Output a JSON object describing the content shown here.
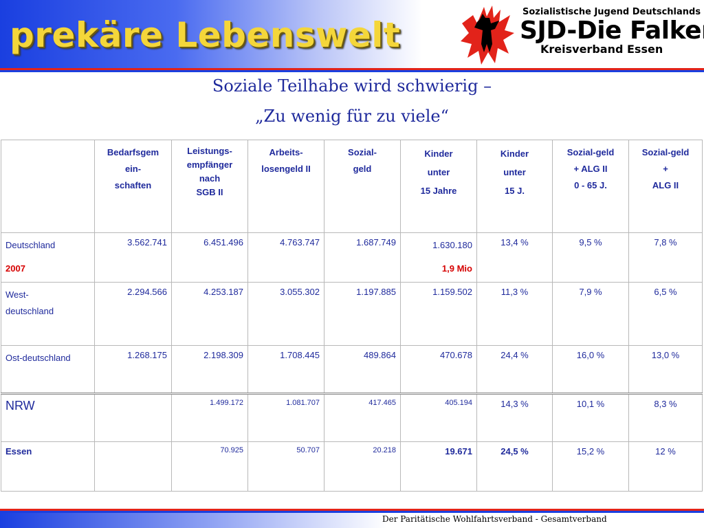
{
  "header": {
    "title": "prekäre Lebenswelt",
    "org_line1": "Sozialistische Jugend Deutschlands",
    "org_line2": "SJD-Die Falken",
    "org_line3": "Kreisverband Essen"
  },
  "slide": {
    "title_line1": "Soziale Teilhabe wird schwierig –",
    "title_line2": "„Zu wenig für zu viele“"
  },
  "table": {
    "headers": [
      "",
      "Bedarfsgem ein-schaften",
      "Leistungs-empfänger nach SGB II",
      "Arbeits-losengeld II",
      "Sozial-geld",
      "Kinder unter 15 Jahre",
      "Kinder unter 15 J.",
      "Sozial-geld + ALG II 0 - 65 J.",
      "Sozial-geld + ALG II"
    ],
    "header_lines": {
      "bedarf": [
        "Bedarfsgem",
        "ein-",
        "schaften"
      ],
      "leist": [
        "Leistungs-",
        "empfänger",
        "nach",
        "SGB II"
      ],
      "alg": [
        "Arbeits-",
        "losengeld II"
      ],
      "sozial": [
        "Sozial-",
        "geld"
      ],
      "kinder1": [
        "Kinder",
        "unter",
        "15 Jahre"
      ],
      "kinder2": [
        "Kinder",
        "unter",
        "15 J."
      ],
      "sgalg1": [
        "Sozial-geld",
        "+ ALG II",
        "0 - 65 J."
      ],
      "sgalg2": [
        "Sozial-geld",
        "+",
        "ALG II"
      ]
    },
    "rows": [
      {
        "label": "Deutschland",
        "sublabel": "2007",
        "values": [
          "3.562.741",
          "6.451.496",
          "4.763.747",
          "1.687.749",
          "1.630.180",
          "13,4 %",
          "9,5 %",
          "7,8 %"
        ],
        "extra": "1,9 Mio"
      },
      {
        "label": "West-deutschland",
        "label_lines": [
          "West-",
          "deutschland"
        ],
        "values": [
          "2.294.566",
          "4.253.187",
          "3.055.302",
          "1.197.885",
          "1.159.502",
          "11,3 %",
          "7,9 %",
          "6,5 %"
        ]
      },
      {
        "label": "Ost-deutschland",
        "values": [
          "1.268.175",
          "2.198.309",
          "1.708.445",
          "489.864",
          "470.678",
          "24,4 %",
          "16,0 %",
          "13,0 %"
        ]
      },
      {
        "label": "NRW",
        "values": [
          "",
          "1.499.172",
          "1.081.707",
          "417.465",
          "405.194",
          "14,3 %",
          "10,1 %",
          "8,3 %"
        ]
      },
      {
        "label": "Essen",
        "values": [
          "",
          "70.925",
          "50.707",
          "20.218",
          "19.671",
          "24,5 %",
          "15,2 %",
          "12 %"
        ]
      }
    ]
  },
  "footer": {
    "source": "Der Paritätische Wohlfahrtsverband - Gesamtverband"
  },
  "colors": {
    "text_blue": "#1f2a9c",
    "accent_red": "#d60000",
    "banner_blue": "#1a3fe0",
    "title_yellow": "#f4d63a"
  }
}
